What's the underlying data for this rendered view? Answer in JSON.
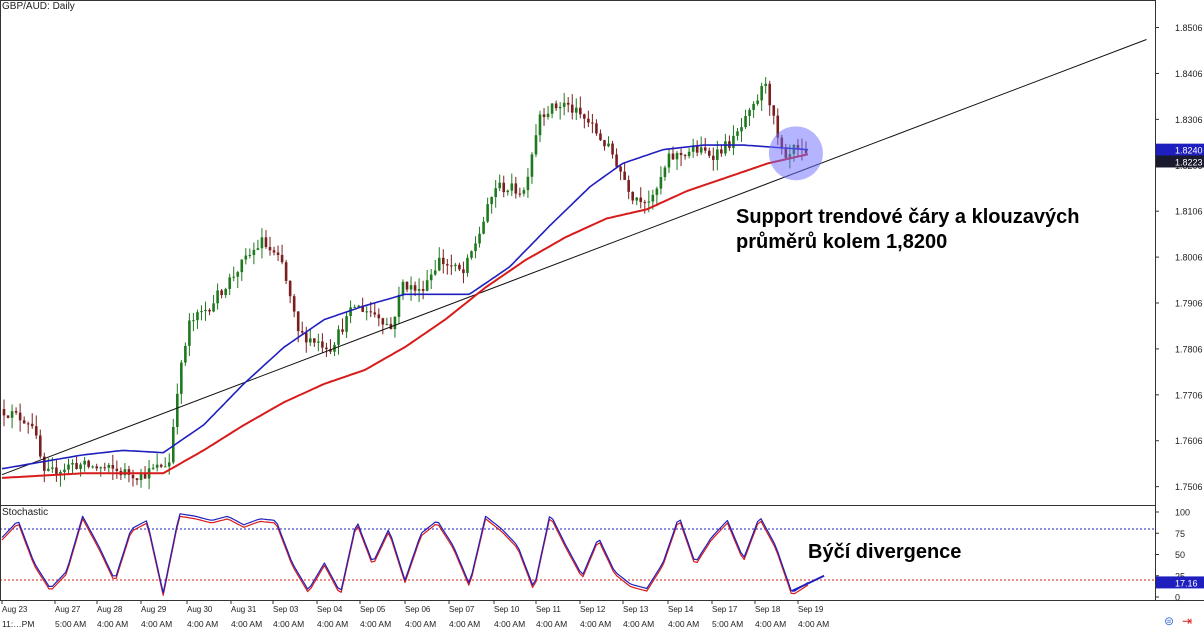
{
  "chart_data": {
    "type": "candlestick",
    "title": "GBP/AUD: Daily",
    "ylim": [
      1.7466,
      1.8566
    ],
    "y_ticks": [
      "1.8506",
      "1.8406",
      "1.8306",
      "1.8206",
      "1.8106",
      "1.8006",
      "1.7906",
      "1.7806",
      "1.7706",
      "1.7606",
      "1.7506"
    ],
    "price_label_top": "1.8240",
    "price_label_bottom": "1.8223",
    "price_label_top_color": "#1f1fbf",
    "price_label_bottom_color": "#1a1a2e",
    "x_date_labels": [
      "Aug 23",
      "Aug 27",
      "Aug 28",
      "Aug 29",
      "Aug 30",
      "Aug 31",
      "Sep 03",
      "Sep 04",
      "Sep 05",
      "Sep 06",
      "Sep 07",
      "Sep 10",
      "Sep 11",
      "Sep 12",
      "Sep 13",
      "Sep 14",
      "Sep 17",
      "Sep 18",
      "Sep 19"
    ],
    "x_time_labels": [
      "11:…PM",
      "5:00 AM",
      "4:00 AM",
      "4:00 AM",
      "4:00 AM",
      "4:00 AM",
      "4:00 AM",
      "4:00 AM",
      "4:00 AM",
      "4:00 AM",
      "4:00 AM",
      "4:00 AM",
      "4:00 AM",
      "4:00 AM",
      "4:00 AM",
      "4:00 AM",
      "5:00 AM",
      "4:00 AM",
      "4:00 AM"
    ],
    "anchors": [
      {
        "t": 0,
        "p": 1.7675
      },
      {
        "t": 0.04,
        "p": 1.7645
      },
      {
        "t": 0.055,
        "p": 1.753
      },
      {
        "t": 0.09,
        "p": 1.7555
      },
      {
        "t": 0.13,
        "p": 1.7545
      },
      {
        "t": 0.175,
        "p": 1.753
      },
      {
        "t": 0.21,
        "p": 1.756
      },
      {
        "t": 0.22,
        "p": 1.772
      },
      {
        "t": 0.235,
        "p": 1.786
      },
      {
        "t": 0.26,
        "p": 1.79
      },
      {
        "t": 0.3,
        "p": 1.799
      },
      {
        "t": 0.325,
        "p": 1.804
      },
      {
        "t": 0.35,
        "p": 1.799
      },
      {
        "t": 0.37,
        "p": 1.784
      },
      {
        "t": 0.41,
        "p": 1.781
      },
      {
        "t": 0.44,
        "p": 1.79
      },
      {
        "t": 0.47,
        "p": 1.788
      },
      {
        "t": 0.485,
        "p": 1.785
      },
      {
        "t": 0.5,
        "p": 1.795
      },
      {
        "t": 0.52,
        "p": 1.793
      },
      {
        "t": 0.545,
        "p": 1.8
      },
      {
        "t": 0.575,
        "p": 1.797
      },
      {
        "t": 0.595,
        "p": 1.806
      },
      {
        "t": 0.615,
        "p": 1.816
      },
      {
        "t": 0.65,
        "p": 1.815
      },
      {
        "t": 0.67,
        "p": 1.832
      },
      {
        "t": 0.7,
        "p": 1.834
      },
      {
        "t": 0.73,
        "p": 1.83
      },
      {
        "t": 0.76,
        "p": 1.823
      },
      {
        "t": 0.785,
        "p": 1.814
      },
      {
        "t": 0.81,
        "p": 1.813
      },
      {
        "t": 0.83,
        "p": 1.822
      },
      {
        "t": 0.86,
        "p": 1.824
      },
      {
        "t": 0.885,
        "p": 1.823
      },
      {
        "t": 0.91,
        "p": 1.826
      },
      {
        "t": 0.935,
        "p": 1.833
      },
      {
        "t": 0.95,
        "p": 1.839
      },
      {
        "t": 0.965,
        "p": 1.826
      },
      {
        "t": 0.975,
        "p": 1.821
      },
      {
        "t": 0.985,
        "p": 1.824
      },
      {
        "t": 1,
        "p": 1.8223
      }
    ],
    "trendline": [
      {
        "t": 0,
        "p": 1.7532
      },
      {
        "t": 1.42,
        "p": 1.848
      }
    ],
    "ma_blue": [
      {
        "t": 0,
        "p": 1.7545
      },
      {
        "t": 0.1,
        "p": 1.7575
      },
      {
        "t": 0.15,
        "p": 1.7585
      },
      {
        "t": 0.2,
        "p": 1.758
      },
      {
        "t": 0.25,
        "p": 1.764
      },
      {
        "t": 0.3,
        "p": 1.773
      },
      {
        "t": 0.35,
        "p": 1.781
      },
      {
        "t": 0.4,
        "p": 1.787
      },
      {
        "t": 0.45,
        "p": 1.79
      },
      {
        "t": 0.5,
        "p": 1.7925
      },
      {
        "t": 0.55,
        "p": 1.7925
      },
      {
        "t": 0.58,
        "p": 1.7925
      },
      {
        "t": 0.63,
        "p": 1.7985
      },
      {
        "t": 0.68,
        "p": 1.8075
      },
      {
        "t": 0.73,
        "p": 1.816
      },
      {
        "t": 0.77,
        "p": 1.821
      },
      {
        "t": 0.82,
        "p": 1.824
      },
      {
        "t": 0.87,
        "p": 1.825
      },
      {
        "t": 0.92,
        "p": 1.825
      },
      {
        "t": 0.96,
        "p": 1.8245
      },
      {
        "t": 1,
        "p": 1.824
      }
    ],
    "ma_red": [
      {
        "t": 0,
        "p": 1.7525
      },
      {
        "t": 0.1,
        "p": 1.7535
      },
      {
        "t": 0.2,
        "p": 1.7535
      },
      {
        "t": 0.25,
        "p": 1.7585
      },
      {
        "t": 0.3,
        "p": 1.764
      },
      {
        "t": 0.35,
        "p": 1.769
      },
      {
        "t": 0.4,
        "p": 1.773
      },
      {
        "t": 0.45,
        "p": 1.776
      },
      {
        "t": 0.5,
        "p": 1.781
      },
      {
        "t": 0.55,
        "p": 1.787
      },
      {
        "t": 0.6,
        "p": 1.794
      },
      {
        "t": 0.65,
        "p": 1.8
      },
      {
        "t": 0.7,
        "p": 1.805
      },
      {
        "t": 0.75,
        "p": 1.809
      },
      {
        "t": 0.8,
        "p": 1.811
      },
      {
        "t": 0.85,
        "p": 1.815
      },
      {
        "t": 0.9,
        "p": 1.818
      },
      {
        "t": 0.95,
        "p": 1.821
      },
      {
        "t": 1,
        "p": 1.823
      }
    ],
    "stochastic": {
      "label": "Stochastic",
      "ylim": [
        0,
        100
      ],
      "y_ticks": [
        "100",
        "75",
        "50",
        "25",
        "0"
      ],
      "overbought": 80,
      "oversold": 20,
      "value_label_top": "",
      "value_label": "17.16",
      "anchors": [
        {
          "t": 0,
          "v": 70
        },
        {
          "t": 0.02,
          "v": 90
        },
        {
          "t": 0.04,
          "v": 40
        },
        {
          "t": 0.06,
          "v": 10
        },
        {
          "t": 0.08,
          "v": 30
        },
        {
          "t": 0.1,
          "v": 95
        },
        {
          "t": 0.12,
          "v": 60
        },
        {
          "t": 0.14,
          "v": 20
        },
        {
          "t": 0.16,
          "v": 80
        },
        {
          "t": 0.18,
          "v": 90
        },
        {
          "t": 0.2,
          "v": 5
        },
        {
          "t": 0.22,
          "v": 98
        },
        {
          "t": 0.24,
          "v": 95
        },
        {
          "t": 0.26,
          "v": 90
        },
        {
          "t": 0.28,
          "v": 95
        },
        {
          "t": 0.3,
          "v": 85
        },
        {
          "t": 0.32,
          "v": 92
        },
        {
          "t": 0.34,
          "v": 90
        },
        {
          "t": 0.36,
          "v": 40
        },
        {
          "t": 0.38,
          "v": 8
        },
        {
          "t": 0.4,
          "v": 40
        },
        {
          "t": 0.42,
          "v": 5
        },
        {
          "t": 0.44,
          "v": 90
        },
        {
          "t": 0.46,
          "v": 40
        },
        {
          "t": 0.48,
          "v": 80
        },
        {
          "t": 0.5,
          "v": 20
        },
        {
          "t": 0.52,
          "v": 75
        },
        {
          "t": 0.54,
          "v": 90
        },
        {
          "t": 0.56,
          "v": 60
        },
        {
          "t": 0.58,
          "v": 15
        },
        {
          "t": 0.6,
          "v": 95
        },
        {
          "t": 0.62,
          "v": 80
        },
        {
          "t": 0.64,
          "v": 60
        },
        {
          "t": 0.66,
          "v": 10
        },
        {
          "t": 0.68,
          "v": 98
        },
        {
          "t": 0.7,
          "v": 60
        },
        {
          "t": 0.72,
          "v": 25
        },
        {
          "t": 0.74,
          "v": 70
        },
        {
          "t": 0.76,
          "v": 30
        },
        {
          "t": 0.78,
          "v": 15
        },
        {
          "t": 0.8,
          "v": 10
        },
        {
          "t": 0.82,
          "v": 40
        },
        {
          "t": 0.84,
          "v": 95
        },
        {
          "t": 0.86,
          "v": 40
        },
        {
          "t": 0.88,
          "v": 70
        },
        {
          "t": 0.9,
          "v": 90
        },
        {
          "t": 0.92,
          "v": 45
        },
        {
          "t": 0.94,
          "v": 95
        },
        {
          "t": 0.96,
          "v": 60
        },
        {
          "t": 0.98,
          "v": 5
        },
        {
          "t": 1,
          "v": 17
        }
      ],
      "divergence": [
        {
          "t": 0.98,
          "v": 7
        },
        {
          "t": 1.02,
          "v": 25
        }
      ]
    },
    "annotations": {
      "support": [
        "Support trendové čáry a klouzavých",
        "průměrů kolem 1,8200"
      ],
      "divergence": "Býčí divergence"
    },
    "colors": {
      "bull": "#1f7a1f",
      "bear": "#7a1f1f",
      "ma_blue": "#1f1fbf",
      "ma_red": "#d81b1b",
      "trend": "#111111",
      "stoch_k": "#1f1fbf",
      "stoch_d": "#d81b1b",
      "circle": "#6b6bff"
    }
  }
}
